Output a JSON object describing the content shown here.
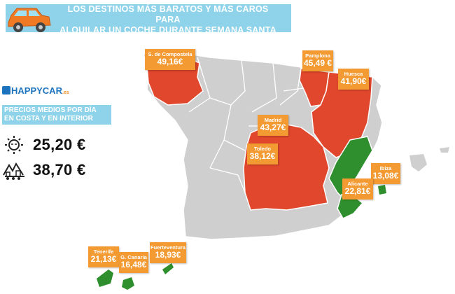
{
  "header": {
    "title_line1": "LOS DESTINOS MÁS BARATOS Y MÁS CAROS PARA",
    "title_line2": "ALQUILAR UN COCHE DURANTE SEMANA SANTA"
  },
  "brand": {
    "name": "HAPPYCAR",
    "tld": ".es"
  },
  "sidebar": {
    "subtitle_line1": "PRECIOS MEDIOS POR DÍA",
    "subtitle_line2": "EN COSTA Y EN INTERIOR",
    "costa_price": "25,20 €",
    "interior_price": "38,70 €"
  },
  "colors": {
    "header_bg": "#8fd3ea",
    "land": "#cfcfcf",
    "expensive": "#e0472c",
    "cheap": "#2f8f2e",
    "label_bg": "#f39a33"
  },
  "destinations": [
    {
      "city": "S. de Compostela",
      "price": "49,16€",
      "category": "expensive"
    },
    {
      "city": "Pamplona",
      "price": "45,49 €",
      "category": "expensive"
    },
    {
      "city": "Huesca",
      "price": "41,90€",
      "category": "expensive"
    },
    {
      "city": "Madrid",
      "price": "43,27€",
      "category": "expensive"
    },
    {
      "city": "Toledo",
      "price": "38,12€",
      "category": "expensive"
    },
    {
      "city": "Ibiza",
      "price": "13,08€",
      "category": "cheap"
    },
    {
      "city": "Alicante",
      "price": "22,81€",
      "category": "cheap"
    },
    {
      "city": "Tenerife",
      "price": "21,13€",
      "category": "cheap"
    },
    {
      "city": "G. Canaria",
      "price": "16,48€",
      "category": "cheap"
    },
    {
      "city": "Fuerteventura",
      "price": "18,93€",
      "category": "cheap"
    }
  ]
}
